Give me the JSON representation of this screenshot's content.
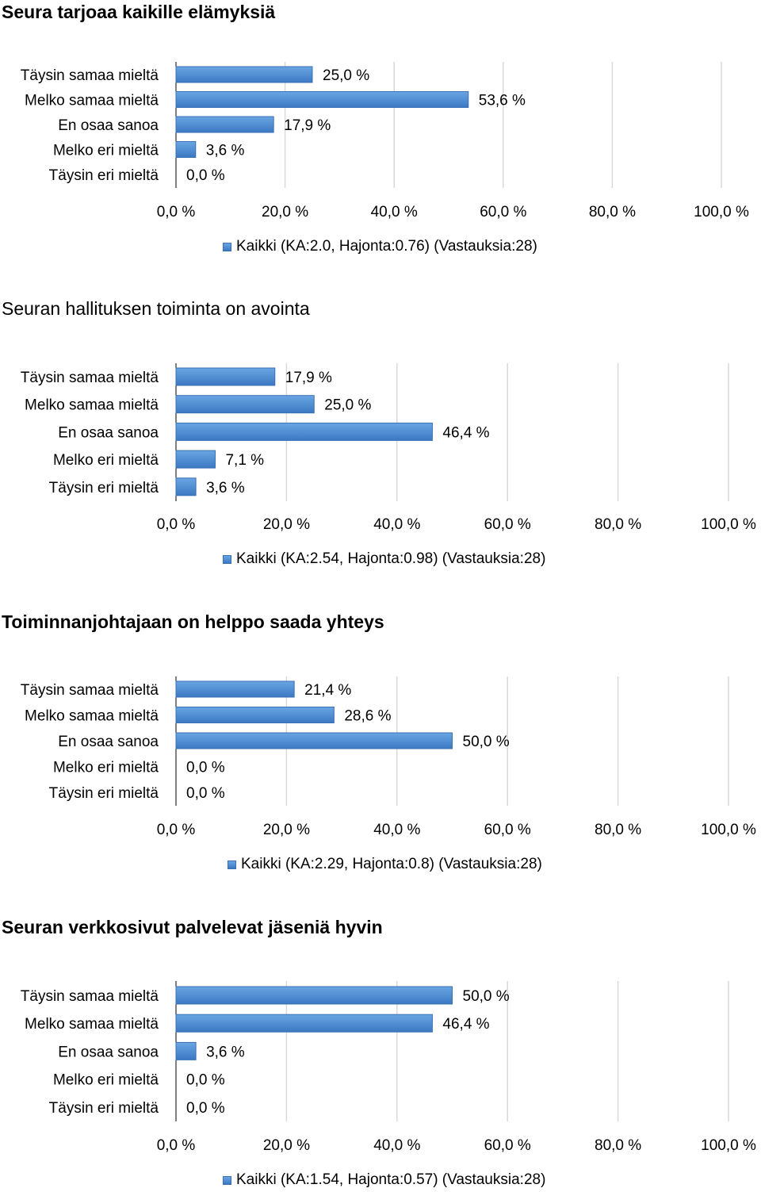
{
  "chart_data": [
    {
      "type": "bar",
      "orientation": "horizontal",
      "title": "Seura tarjoaa kaikille elämyksiä",
      "categories": [
        "Täysin samaa mieltä",
        "Melko samaa mieltä",
        "En osaa sanoa",
        "Melko eri mieltä",
        "Täysin eri mieltä"
      ],
      "series": [
        {
          "name": "Kaikki (KA:2.0, Hajonta:0.76) (Vastauksia:28)",
          "values": [
            25.0,
            53.6,
            17.9,
            3.6,
            0.0
          ]
        }
      ],
      "value_labels": [
        "25,0 %",
        "53,6 %",
        "17,9 %",
        "3,6 %",
        "0,0 %"
      ],
      "xticks": [
        "0,0 %",
        "20,0 %",
        "40,0 %",
        "60,0 %",
        "80,0 %",
        "100,0 %"
      ],
      "xlim": [
        0,
        100
      ],
      "grid": true,
      "legend": "bottom"
    },
    {
      "type": "bar",
      "orientation": "horizontal",
      "title": "Seuran hallituksen toiminta on avointa",
      "categories": [
        "Täysin samaa mieltä",
        "Melko samaa mieltä",
        "En osaa sanoa",
        "Melko eri mieltä",
        "Täysin eri mieltä"
      ],
      "series": [
        {
          "name": "Kaikki (KA:2.54, Hajonta:0.98) (Vastauksia:28)",
          "values": [
            17.9,
            25.0,
            46.4,
            7.1,
            3.6
          ]
        }
      ],
      "value_labels": [
        "17,9 %",
        "25,0 %",
        "46,4 %",
        "7,1 %",
        "3,6 %"
      ],
      "xticks": [
        "0,0 %",
        "20,0 %",
        "40,0 %",
        "60,0 %",
        "80,0 %",
        "100,0 %"
      ],
      "xlim": [
        0,
        100
      ],
      "grid": true,
      "legend": "bottom"
    },
    {
      "type": "bar",
      "orientation": "horizontal",
      "title": "Toiminnanjohtajaan on helppo saada yhteys",
      "categories": [
        "Täysin samaa mieltä",
        "Melko samaa mieltä",
        "En osaa sanoa",
        "Melko eri mieltä",
        "Täysin eri mieltä"
      ],
      "series": [
        {
          "name": "Kaikki (KA:2.29, Hajonta:0.8) (Vastauksia:28)",
          "values": [
            21.4,
            28.6,
            50.0,
            0.0,
            0.0
          ]
        }
      ],
      "value_labels": [
        "21,4 %",
        "28,6 %",
        "50,0 %",
        "0,0 %",
        "0,0 %"
      ],
      "xticks": [
        "0,0 %",
        "20,0 %",
        "40,0 %",
        "60,0 %",
        "80,0 %",
        "100,0 %"
      ],
      "xlim": [
        0,
        100
      ],
      "grid": true,
      "legend": "bottom"
    },
    {
      "type": "bar",
      "orientation": "horizontal",
      "title": "Seuran verkkosivut palvelevat jäseniä hyvin",
      "categories": [
        "Täysin samaa mieltä",
        "Melko samaa mieltä",
        "En osaa sanoa",
        "Melko eri mieltä",
        "Täysin eri mieltä"
      ],
      "series": [
        {
          "name": "Kaikki (KA:1.54, Hajonta:0.57) (Vastauksia:28)",
          "values": [
            50.0,
            46.4,
            3.6,
            0.0,
            0.0
          ]
        }
      ],
      "value_labels": [
        "50,0 %",
        "46,4 %",
        "3,6 %",
        "0,0 %",
        "0,0 %"
      ],
      "xticks": [
        "0,0 %",
        "20,0 %",
        "40,0 %",
        "60,0 %",
        "80,0 %",
        "100,0 %"
      ],
      "xlim": [
        0,
        100
      ],
      "grid": true,
      "legend": "bottom"
    }
  ],
  "colors": {
    "bar_top": "#6aa6e3",
    "bar_bottom": "#3b78c2",
    "bar_border": "#3a70b5",
    "grid": "#d9d9d9",
    "axis": "#000000"
  }
}
